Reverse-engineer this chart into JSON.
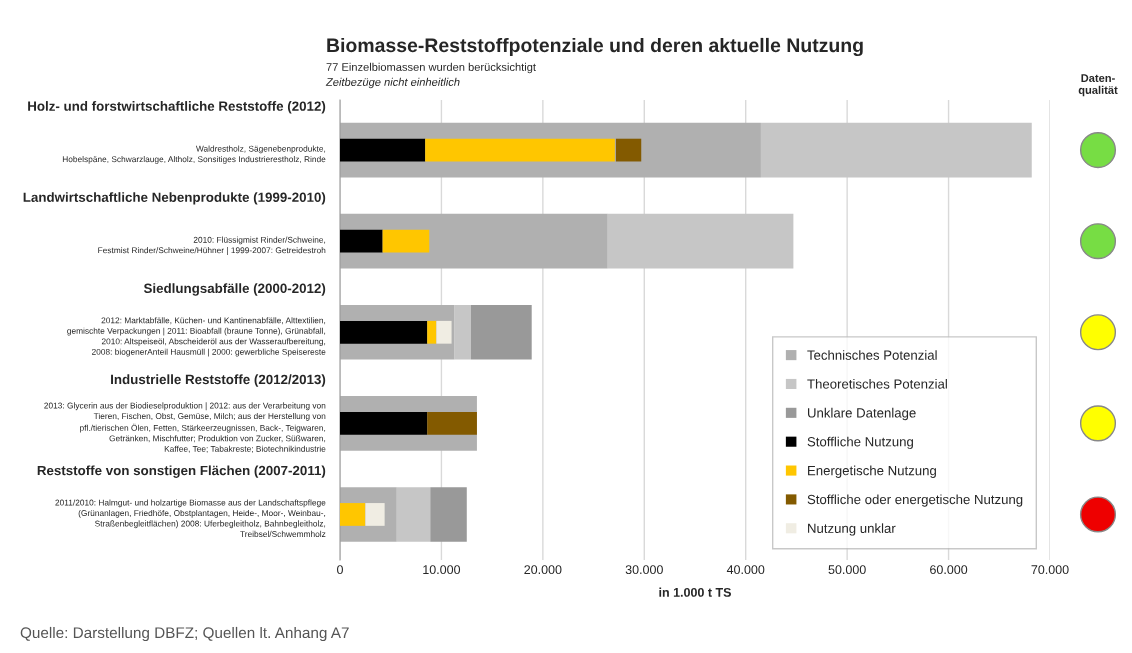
{
  "chart_data": {
    "type": "bar",
    "orientation": "horizontal",
    "title": "Biomasse-Reststoffpotenziale und deren aktuelle Nutzung",
    "subtitle": "77 Einzelbiomassen wurden berücksichtigt",
    "xlabel": "in 1.000 t TS",
    "categories": [
      "Holz- und forstwirtschaftliche Reststoffe (2012)",
      "Landwirtschaftliche Nebenprodukte (1999-2010)",
      "Siedlungsabfälle (2000-2012)",
      "Industrielle Reststoffe (2012/2013)",
      "Reststoffe von sonstigen Flächen (2007-2011)"
    ],
    "series": [
      {
        "name": "Technisches Potenzial",
        "color": "#b0b0b0",
        "base": [
          0,
          0,
          0,
          0,
          0
        ],
        "values": [
          41500,
          26400,
          11300,
          13500,
          5600
        ]
      },
      {
        "name": "Theoretisches Potenzial",
        "color": "#c6c6c6",
        "base": [
          41500,
          26400,
          11300,
          null,
          5600
        ],
        "values": [
          26700,
          18300,
          1600,
          null,
          3300
        ]
      },
      {
        "name": "Unklare Datenlage",
        "color": "#999999",
        "base": [
          null,
          null,
          12900,
          null,
          8900
        ],
        "values": [
          null,
          null,
          6000,
          null,
          3600
        ]
      },
      {
        "name": "Stoffliche Nutzung",
        "color": "#000000",
        "base": [
          0,
          0,
          0,
          0,
          null
        ],
        "values": [
          8400,
          4200,
          8600,
          8600,
          null
        ]
      },
      {
        "name": "Energetische Nutzung",
        "color": "#ffc600",
        "base": [
          8400,
          4200,
          8600,
          null,
          0
        ],
        "values": [
          18700,
          4600,
          900,
          null,
          2500
        ]
      },
      {
        "name": "Stoffliche oder energetische Nutzung",
        "color": "#835a00",
        "base": [
          27200,
          null,
          null,
          8600,
          null
        ],
        "values": [
          2500,
          null,
          null,
          4900,
          null
        ]
      },
      {
        "name": "Nutzung unklar",
        "color": "#f0ede3",
        "base": [
          null,
          null,
          9500,
          null,
          2500
        ],
        "values": [
          null,
          null,
          1500,
          null,
          1900
        ]
      }
    ],
    "xlim": [
      0,
      70000
    ],
    "xticks": [
      0,
      {
        "value": 10000,
        "label": "10.000"
      },
      {
        "value": 20000,
        "label": "20.000"
      },
      {
        "value": 30000,
        "label": "30.000"
      },
      {
        "value": 40000,
        "label": "40.000"
      },
      {
        "value": 50000,
        "label": "50.000"
      },
      {
        "value": 60000,
        "label": "60.000"
      },
      {
        "value": 70000,
        "label": "70.000"
      }
    ],
    "grid": "x",
    "legend": "bottom right",
    "annotations": [
      "Waldrestholz, Sägenebenprodukte,\nHobelspäne, Schwarzlauge, Altholz, Sonsitiges Industrierestholz, Rinde",
      "2010: Flüssigmist Rinder/Schweine,\nFestmist Rinder/Schweine/Hühner | 1999-2007: Getreidestroh",
      "2012: Marktabfälle, Küchen- und Kantinenabfälle, Alttextilien,\ngemischte Verpackungen | 2011: Bioabfall (braune Tonne), Grünabfall,\n2010: Altspeiseöl, Abscheideröl aus der Wasseraufbereitung,\n2008: biogenerAnteil Hausmüll | 2000: gewerbliche Speisereste",
      "2013: Glycerin aus der Biodieselproduktion | 2012: aus der Verarbeitung von\nTieren, Fischen, Obst, Gemüse, Milch; aus der Herstellung von\npfl./tierischen Ölen, Fetten, Stärkeerzeugnissen, Back-, Teigwaren,\nGetränken, Mischfutter; Produktion von Zucker, Süßwaren,\nKaffee, Tee; Tabakreste; Biotechnikindustrie",
      "2011/2010: Halmgut- und holzartige Biomasse aus der Landschaftspflege\n(Grünanlagen, Friedhöfe, Obstplantagen, Heide-, Moor-, Weinbau-,\nStraßenbegleitflächen) 2008: Uferbegleitholz, Bahnbegleitholz,\nTreibsel/Schwemmholz",
      "Zeitbezüge nicht einheitlich",
      "Daten-\nqualität",
      "Quelle: Darstellung DBFZ; Quellen lt. Anhang A7"
    ]
  }
}
